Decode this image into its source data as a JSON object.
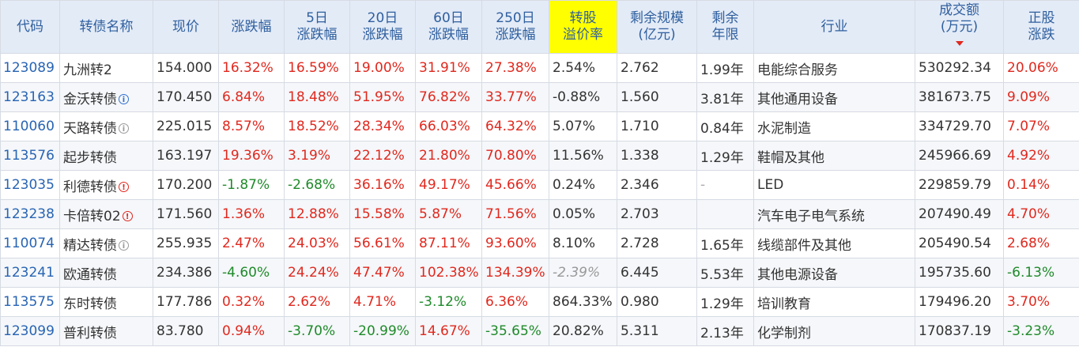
{
  "headers": {
    "code": "代码",
    "name": "转债名称",
    "price": "现价",
    "change": "涨跌幅",
    "d5_l1": "5日",
    "d5_l2": "涨跌幅",
    "d20_l1": "20日",
    "d20_l2": "涨跌幅",
    "d60_l1": "60日",
    "d60_l2": "涨跌幅",
    "d250_l1": "250日",
    "d250_l2": "涨跌幅",
    "prem_l1": "转股",
    "prem_l2": "溢价率",
    "scale_l1": "剩余规模",
    "scale_l2": "(亿元)",
    "years_l1": "剩余",
    "years_l2": "年限",
    "industry": "行业",
    "volume_l1": "成交额",
    "volume_l2": "(万元)",
    "stock_l1": "正股",
    "stock_l2": "涨跌"
  },
  "rows": [
    {
      "code": "123089",
      "name": "九洲转2",
      "icon": "",
      "price": "154.000",
      "change": "16.32%",
      "d5": "16.59%",
      "d20": "19.00%",
      "d60": "31.91%",
      "d250": "27.38%",
      "premium": "2.54%",
      "scale": "2.762",
      "years": "1.99年",
      "industry": "电能综合服务",
      "volume": "530292.34",
      "stock": "20.06%"
    },
    {
      "code": "123163",
      "name": "金沃转债",
      "icon": "blue",
      "price": "170.450",
      "change": "6.84%",
      "d5": "18.48%",
      "d20": "51.95%",
      "d60": "76.82%",
      "d250": "33.77%",
      "premium": "-0.88%",
      "scale": "1.560",
      "years": "3.81年",
      "industry": "其他通用设备",
      "volume": "381673.75",
      "stock": "9.09%"
    },
    {
      "code": "110060",
      "name": "天路转债",
      "icon": "grey",
      "price": "225.015",
      "change": "8.57%",
      "d5": "18.52%",
      "d20": "28.34%",
      "d60": "66.03%",
      "d250": "64.32%",
      "premium": "5.07%",
      "scale": "1.710",
      "years": "0.84年",
      "industry": "水泥制造",
      "volume": "334729.70",
      "stock": "7.07%"
    },
    {
      "code": "113576",
      "name": "起步转债",
      "icon": "",
      "price": "163.197",
      "change": "19.36%",
      "d5": "3.19%",
      "d20": "22.12%",
      "d60": "21.80%",
      "d250": "70.80%",
      "premium": "11.56%",
      "scale": "1.338",
      "years": "1.29年",
      "industry": "鞋帽及其他",
      "volume": "245966.69",
      "stock": "4.92%"
    },
    {
      "code": "123035",
      "name": "利德转债",
      "icon": "red",
      "price": "170.200",
      "change": "-1.87%",
      "d5": "-2.68%",
      "d20": "36.16%",
      "d60": "49.17%",
      "d250": "45.66%",
      "premium": "0.24%",
      "scale": "2.346",
      "years": "-",
      "industry": "LED",
      "volume": "229859.79",
      "stock": "0.14%"
    },
    {
      "code": "123238",
      "name": "卡倍转02",
      "icon": "red",
      "price": "171.560",
      "change": "1.36%",
      "d5": "12.88%",
      "d20": "15.58%",
      "d60": "5.87%",
      "d250": "71.56%",
      "premium": "0.05%",
      "scale": "2.703",
      "years": "",
      "industry": "汽车电子电气系统",
      "volume": "207490.49",
      "stock": "4.70%"
    },
    {
      "code": "110074",
      "name": "精达转债",
      "icon": "grey",
      "price": "255.935",
      "change": "2.47%",
      "d5": "24.03%",
      "d20": "56.61%",
      "d60": "87.11%",
      "d250": "93.60%",
      "premium": "8.10%",
      "scale": "2.728",
      "years": "1.65年",
      "industry": "线缆部件及其他",
      "volume": "205490.54",
      "stock": "2.68%"
    },
    {
      "code": "123241",
      "name": "欧通转债",
      "icon": "",
      "price": "234.386",
      "change": "-4.60%",
      "d5": "24.24%",
      "d20": "47.47%",
      "d60": "102.38%",
      "d250": "134.39%",
      "premium": "-2.39%",
      "scale": "6.445",
      "years": "5.53年",
      "industry": "其他电源设备",
      "volume": "195735.60",
      "stock": "-6.13%"
    },
    {
      "code": "113575",
      "name": "东时转债",
      "icon": "",
      "price": "177.786",
      "change": "0.32%",
      "d5": "2.62%",
      "d20": "4.71%",
      "d60": "-3.12%",
      "d250": "6.36%",
      "premium": "864.33%",
      "scale": "0.980",
      "years": "1.29年",
      "industry": "培训教育",
      "volume": "179496.20",
      "stock": "3.70%"
    },
    {
      "code": "123099",
      "name": "普利转债",
      "icon": "",
      "price": "83.780",
      "change": "0.94%",
      "d5": "-3.70%",
      "d20": "-20.99%",
      "d60": "14.67%",
      "d250": "-35.65%",
      "premium": "20.82%",
      "scale": "5.311",
      "years": "2.13年",
      "industry": "化学制剂",
      "volume": "170837.19",
      "stock": "-3.23%"
    }
  ]
}
